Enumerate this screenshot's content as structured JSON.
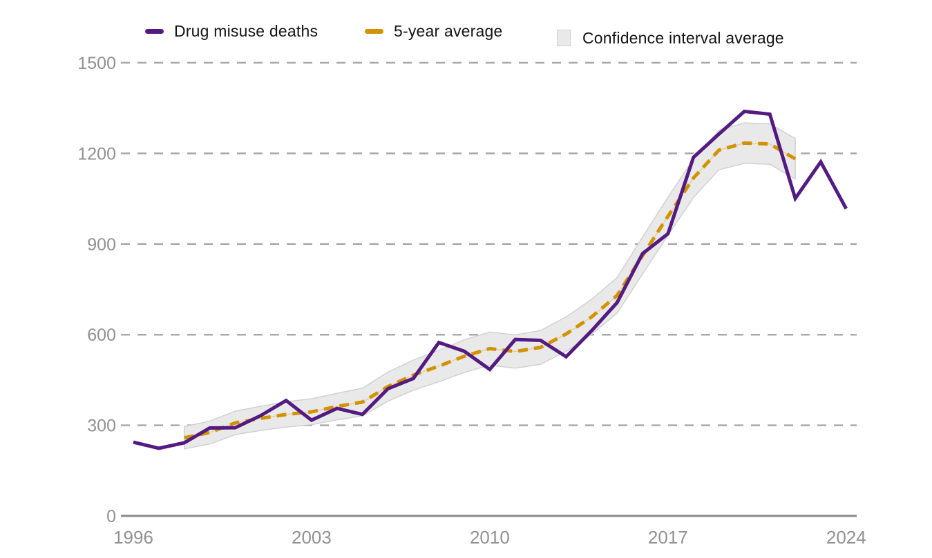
{
  "colors": {
    "deaths_line": "#531B82",
    "average_line": "#D39200",
    "band_fill": "#E9E9E9",
    "band_border": "#CFCFCF",
    "gridline": "#A8A8A8",
    "axis_line": "#8A8A8A",
    "tick_label": "#919191",
    "legend_text": "#141414",
    "background": "#FFFFFF"
  },
  "chart_data": {
    "type": "line",
    "legend_position": "top",
    "grid": "horizontal-dashed",
    "xlim": [
      1996,
      2024
    ],
    "ylim": [
      0,
      1500
    ],
    "xticks": [
      1996,
      2003,
      2010,
      2017,
      2024
    ],
    "yticks": [
      0,
      300,
      600,
      900,
      1200,
      1500
    ],
    "series": [
      {
        "name": "Drug misuse deaths",
        "type": "line",
        "style": "solid",
        "color": "#531B82",
        "start_year": 1996,
        "values": [
          244,
          224,
          242,
          291,
          292,
          332,
          382,
          317,
          356,
          336,
          421,
          455,
          574,
          545,
          485,
          584,
          581,
          527,
          613,
          706,
          868,
          934,
          1187,
          1264,
          1339,
          1330,
          1051,
          1172,
          1017
        ]
      },
      {
        "name": "5-year average",
        "type": "line",
        "style": "dashed",
        "color": "#D39200",
        "start_year": 1998,
        "values": [
          258.6,
          276.2,
          307.8,
          322.8,
          335.8,
          344.6,
          362.4,
          377,
          428.4,
          466.2,
          496,
          528.6,
          553.8,
          544.4,
          558,
          602.2,
          659,
          729.6,
          861.6,
          991.8,
          1118.4,
          1210.8,
          1234.2,
          1231.2,
          1181.8
        ]
      },
      {
        "name": "Confidence interval average",
        "type": "band",
        "style": "area",
        "color": "#E9E9E9",
        "border_color": "#CFCFCF",
        "start_year": 1998,
        "lower": [
          222,
          238,
          269,
          283,
          294,
          302,
          318,
          331,
          380,
          416,
          444,
          475,
          499,
          489,
          502,
          545,
          601,
          671,
          801,
          929,
          1054,
          1146,
          1167,
          1164,
          1115
        ],
        "upper": [
          296,
          314,
          347,
          363,
          378,
          388,
          406,
          423,
          476,
          516,
          548,
          583,
          609,
          599,
          614,
          659,
          717,
          789,
          923,
          1055,
          1182,
          1276,
          1301,
          1298,
          1249
        ]
      }
    ]
  }
}
